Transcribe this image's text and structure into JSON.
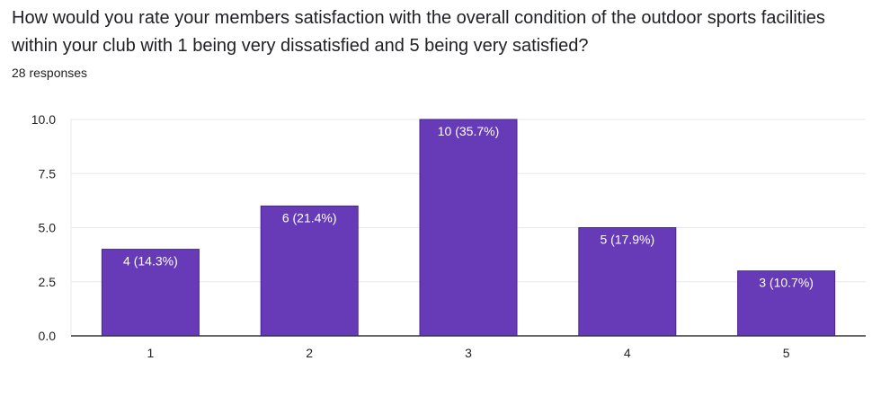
{
  "question": "How would you rate your members satisfaction with the overall condition of the outdoor sports facilities within your club with 1 being very dissatisfied and 5 being very satisfied?",
  "responses": "28 responses",
  "colors": {
    "bar": "#673ab7",
    "bar_label": "#ffffff",
    "grid": "#e8e8e8",
    "axis": "#333333",
    "tick_text": "#222222"
  },
  "chart_data": {
    "type": "bar",
    "title": "How would you rate your members satisfaction with the overall condition of the outdoor sports facilities within your club with 1 being very dissatisfied and 5 being very satisfied?",
    "xlabel": "",
    "ylabel": "",
    "categories": [
      "1",
      "2",
      "3",
      "4",
      "5"
    ],
    "values": [
      4,
      6,
      10,
      5,
      3
    ],
    "data_labels": [
      "4 (14.3%)",
      "6 (21.4%)",
      "10 (35.7%)",
      "5 (17.9%)",
      "3 (10.7%)"
    ],
    "ylim": [
      0,
      10
    ],
    "yticks": [
      "0.0",
      "2.5",
      "5.0",
      "7.5",
      "10.0"
    ],
    "grid": true,
    "legend": "none"
  }
}
